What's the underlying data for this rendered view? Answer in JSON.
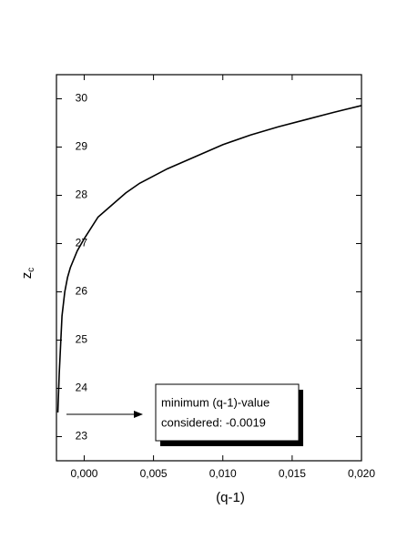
{
  "chart_data": {
    "type": "line",
    "xlabel": "(q-1)",
    "ylabel": "z",
    "ylabel_subscript": "c",
    "x": [
      -0.0019,
      -0.0018,
      -0.0016,
      -0.0014,
      -0.0012,
      -0.001,
      -0.0005,
      0.0,
      0.001,
      0.002,
      0.003,
      0.004,
      0.005,
      0.006,
      0.008,
      0.01,
      0.012,
      0.014,
      0.016,
      0.018,
      0.02
    ],
    "series": [
      {
        "color": "#000000",
        "values": [
          23.5,
          24.3,
          25.5,
          26.0,
          26.3,
          26.5,
          26.85,
          27.1,
          27.55,
          27.8,
          28.05,
          28.25,
          28.4,
          28.55,
          28.8,
          29.05,
          29.25,
          29.42,
          29.57,
          29.72,
          29.86
        ]
      }
    ],
    "xlim": [
      -0.002,
      0.02
    ],
    "xticks": [
      {
        "value": 0,
        "label": "0,000"
      },
      {
        "value": 0.005,
        "label": "0,005"
      },
      {
        "value": 0.01,
        "label": "0,010"
      },
      {
        "value": 0.015,
        "label": "0,015"
      },
      {
        "value": 0.02,
        "label": "0,020"
      }
    ],
    "ylim": [
      22.5,
      30.5
    ],
    "yticks": [
      23,
      24,
      25,
      26,
      27,
      28,
      29,
      30
    ],
    "annotation": [
      "minimum (q-1)-value",
      "considered: -0.0019"
    ]
  }
}
